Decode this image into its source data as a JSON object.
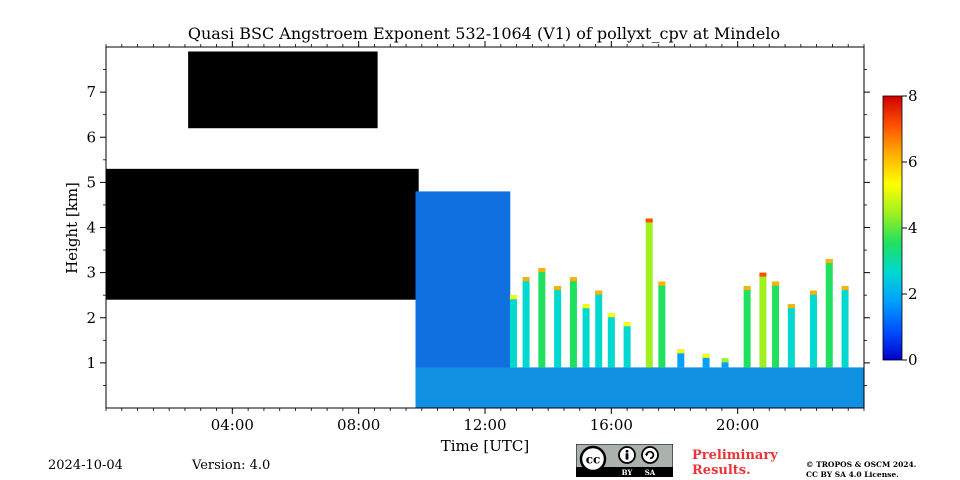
{
  "chart_data": {
    "type": "heatmap",
    "title": "Quasi BSC Angstroem Exponent 532-1064 (V1) of pollyxt_cpv at Mindelo",
    "xlabel": "Time [UTC]",
    "ylabel": "Height [km]",
    "xlim": [
      0,
      24
    ],
    "ylim": [
      0,
      8
    ],
    "x_ticks": [
      {
        "value": 4,
        "label": "04:00"
      },
      {
        "value": 8,
        "label": "08:00"
      },
      {
        "value": 12,
        "label": "12:00"
      },
      {
        "value": 16,
        "label": "16:00"
      },
      {
        "value": 20,
        "label": "20:00"
      }
    ],
    "y_ticks": [
      {
        "value": 1,
        "label": "1"
      },
      {
        "value": 2,
        "label": "2"
      },
      {
        "value": 3,
        "label": "3"
      },
      {
        "value": 4,
        "label": "4"
      },
      {
        "value": 5,
        "label": "5"
      },
      {
        "value": 6,
        "label": "6"
      },
      {
        "value": 7,
        "label": "7"
      }
    ],
    "colorbar": {
      "range": [
        0,
        8
      ],
      "ticks": [
        {
          "value": 0,
          "label": "0"
        },
        {
          "value": 2,
          "label": "2"
        },
        {
          "value": 4,
          "label": "4"
        },
        {
          "value": 6,
          "label": "6"
        },
        {
          "value": 8,
          "label": "8"
        }
      ],
      "colormap": [
        "#0000c8",
        "#0050ff",
        "#00a0ff",
        "#00d8d0",
        "#20e060",
        "#a0f020",
        "#ffff00",
        "#ffb000",
        "#ff5000",
        "#d00000"
      ]
    },
    "regions": [
      {
        "name": "saturated-layer",
        "color": "#000000",
        "t0": 0.0,
        "t1": 9.9,
        "h0": 2.4,
        "h1": 5.3
      },
      {
        "name": "upper-layer",
        "color": "#000000",
        "t0": 2.6,
        "t1": 8.6,
        "h0": 6.2,
        "h1": 7.9
      },
      {
        "name": "daytime-column",
        "color": "#1070e0",
        "t0": 9.8,
        "t1": 12.8,
        "h0": 0.0,
        "h1": 4.8
      },
      {
        "name": "surface-layer",
        "color": "#1090e0",
        "t0": 9.8,
        "t1": 24.0,
        "h0": 0.0,
        "h1": 0.9
      }
    ],
    "profiles": [
      {
        "t": 12.9,
        "top": 2.5,
        "value": 2.5
      },
      {
        "t": 13.3,
        "top": 2.9,
        "value": 3.0
      },
      {
        "t": 13.8,
        "top": 3.1,
        "value": 3.5
      },
      {
        "t": 14.3,
        "top": 2.7,
        "value": 3.0
      },
      {
        "t": 14.8,
        "top": 2.9,
        "value": 3.5
      },
      {
        "t": 15.2,
        "top": 2.3,
        "value": 2.5
      },
      {
        "t": 15.6,
        "top": 2.6,
        "value": 3.0
      },
      {
        "t": 16.0,
        "top": 2.1,
        "value": 2.5
      },
      {
        "t": 16.5,
        "top": 1.9,
        "value": 2.5
      },
      {
        "t": 17.2,
        "top": 4.2,
        "value": 4.5
      },
      {
        "t": 17.6,
        "top": 2.8,
        "value": 3.5
      },
      {
        "t": 18.2,
        "top": 1.3,
        "value": 2.0
      },
      {
        "t": 19.0,
        "top": 1.2,
        "value": 2.0
      },
      {
        "t": 19.6,
        "top": 1.1,
        "value": 1.5
      },
      {
        "t": 20.3,
        "top": 2.7,
        "value": 3.5
      },
      {
        "t": 20.8,
        "top": 3.0,
        "value": 4.0
      },
      {
        "t": 21.2,
        "top": 2.8,
        "value": 3.5
      },
      {
        "t": 21.7,
        "top": 2.3,
        "value": 3.0
      },
      {
        "t": 22.4,
        "top": 2.6,
        "value": 3.0
      },
      {
        "t": 22.9,
        "top": 3.3,
        "value": 3.5
      },
      {
        "t": 23.4,
        "top": 2.7,
        "value": 3.0
      }
    ]
  },
  "footer": {
    "date": "2024-10-04",
    "version": "Version: 4.0",
    "preliminary_line1": "Preliminary",
    "preliminary_line2": "Results.",
    "copyright_line1": "© TROPOS & OSCM 2024.",
    "copyright_line2": "CC BY SA 4.0 License.",
    "license_by": "BY",
    "license_sa": "SA"
  },
  "colors": {
    "preliminary": "#e8353a",
    "cc_badge_bg": "#aab2ab",
    "cc_badge_strip": "#000000"
  },
  "icons": {
    "license": "cc-by-sa-icon"
  }
}
